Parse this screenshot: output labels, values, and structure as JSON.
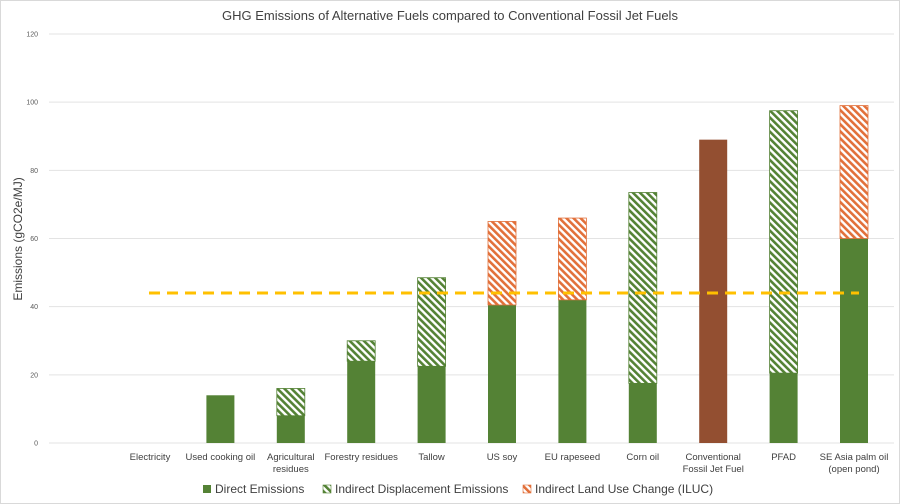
{
  "chart_data": {
    "type": "bar",
    "stacked": true,
    "title": "GHG Emissions of Alternative Fuels compared to Conventional Fossil Jet Fuels",
    "xlabel": "",
    "ylabel": "Emissions (gCO2e/MJ)",
    "ylim": [
      0,
      120
    ],
    "yticks": [
      0,
      20,
      40,
      60,
      80,
      100,
      120
    ],
    "grid": true,
    "legend_position": "bottom",
    "categories": [
      [
        "Electricity"
      ],
      [
        "Used cooking oil"
      ],
      [
        "Agricultural",
        "residues"
      ],
      [
        "Forestry residues"
      ],
      [
        "Tallow"
      ],
      [
        "US soy"
      ],
      [
        "EU rapeseed"
      ],
      [
        "Corn oil"
      ],
      [
        "Conventional",
        "Fossil Jet Fuel"
      ],
      [
        "PFAD"
      ],
      [
        "SE Asia palm oil",
        "(open pond)"
      ]
    ],
    "series": [
      {
        "name": "Direct Emissions",
        "color": "#548235",
        "pattern": "solid",
        "values": [
          0,
          14,
          8,
          24,
          22.5,
          40.5,
          42,
          17.5,
          0,
          20.5,
          60
        ]
      },
      {
        "name": "Indirect Displacement Emissions",
        "color": "#548235",
        "pattern": "hatch",
        "values": [
          0,
          0,
          8,
          6,
          26,
          0,
          0,
          56,
          0,
          77,
          0
        ]
      },
      {
        "name": "Indirect Land Use Change (ILUC)",
        "color": "#E2703A",
        "pattern": "hatch",
        "values": [
          0,
          0,
          0,
          0,
          0,
          24.5,
          24,
          0,
          0,
          0,
          39
        ]
      },
      {
        "name": "Conventional Fossil Jet Fuel",
        "color": "#934F31",
        "pattern": "solid",
        "show_in_legend": false,
        "values": [
          0,
          0,
          0,
          0,
          0,
          0,
          0,
          0,
          89,
          0,
          0
        ]
      }
    ],
    "reference_line": {
      "value": 44,
      "color": "#FFC000",
      "style": "dashed"
    }
  }
}
